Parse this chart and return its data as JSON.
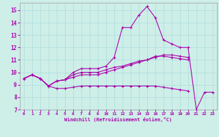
{
  "xlabel": "Windchill (Refroidissement éolien,°C)",
  "bg_color": "#ceeee8",
  "line_color": "#aa00aa",
  "grid_color": "#aadddd",
  "xlim": [
    -0.5,
    23.5
  ],
  "ylim": [
    7,
    15.6
  ],
  "yticks": [
    7,
    8,
    9,
    10,
    11,
    12,
    13,
    14,
    15
  ],
  "xticks": [
    0,
    1,
    2,
    3,
    4,
    5,
    6,
    7,
    8,
    9,
    10,
    11,
    12,
    13,
    14,
    15,
    16,
    17,
    18,
    19,
    20,
    21,
    22,
    23
  ],
  "lines": [
    {
      "x": [
        0,
        1,
        2,
        3,
        4,
        5,
        6,
        7,
        8,
        9,
        10,
        11,
        12,
        13,
        14,
        15,
        16,
        17,
        18,
        19,
        20
      ],
      "y": [
        9.5,
        9.8,
        9.5,
        8.9,
        9.3,
        9.4,
        9.8,
        10.0,
        10.0,
        10.0,
        10.2,
        10.4,
        10.5,
        10.7,
        10.9,
        11.0,
        11.3,
        11.3,
        11.2,
        11.1,
        11.0
      ]
    },
    {
      "x": [
        0,
        1,
        2,
        3,
        4,
        5,
        6,
        7,
        8,
        9,
        10,
        11,
        12,
        13,
        14,
        15,
        16,
        17,
        18,
        19,
        20,
        21,
        22,
        23
      ],
      "y": [
        9.5,
        9.8,
        9.5,
        8.9,
        9.3,
        9.4,
        10.0,
        10.3,
        10.3,
        10.3,
        10.5,
        11.2,
        13.6,
        13.6,
        14.6,
        15.3,
        14.4,
        12.6,
        12.3,
        12.0,
        12.0,
        7.0,
        8.4,
        8.4
      ]
    },
    {
      "x": [
        0,
        1,
        2,
        3,
        4,
        5,
        6,
        7,
        8,
        9,
        10,
        11,
        12,
        13,
        14,
        15,
        16,
        17,
        18,
        19,
        20
      ],
      "y": [
        9.5,
        9.8,
        9.5,
        8.9,
        9.3,
        9.4,
        9.6,
        9.8,
        9.8,
        9.8,
        10.0,
        10.2,
        10.4,
        10.6,
        10.8,
        11.0,
        11.2,
        11.4,
        11.4,
        11.3,
        11.2
      ]
    },
    {
      "x": [
        0,
        1,
        2,
        3,
        4,
        5,
        6,
        7,
        8,
        9,
        10,
        11,
        12,
        13,
        14,
        15,
        16,
        17,
        18,
        19,
        20
      ],
      "y": [
        9.5,
        9.8,
        9.5,
        8.9,
        8.7,
        8.7,
        8.8,
        8.9,
        8.9,
        8.9,
        8.9,
        8.9,
        8.9,
        8.9,
        8.9,
        8.9,
        8.9,
        8.8,
        8.7,
        8.6,
        8.5
      ]
    }
  ]
}
